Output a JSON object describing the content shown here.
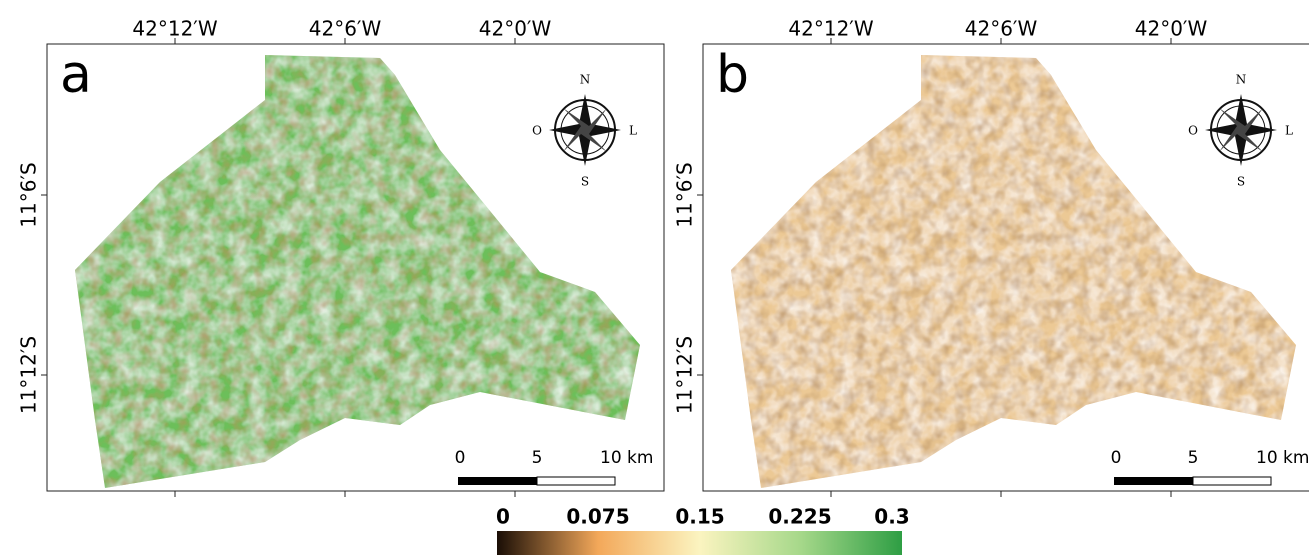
{
  "panels": [
    {
      "label": "a",
      "top_ticks": [
        "42°12′W",
        "42°6′W",
        "42°0′W"
      ],
      "left_ticks": [
        "11°6′S",
        "11°12′S"
      ],
      "compass": {
        "north": "N",
        "south": "S",
        "west": "O",
        "east": "L"
      },
      "scale_bar": [
        "0",
        "5",
        "10 km"
      ]
    },
    {
      "label": "b",
      "top_ticks": [
        "42°12′W",
        "42°6′W",
        "42°0′W"
      ],
      "left_ticks": [
        "11°6′S",
        "11°12′S"
      ],
      "compass": {
        "north": "N",
        "south": "S",
        "west": "O",
        "east": "L"
      },
      "scale_bar": [
        "0",
        "5",
        "10 km"
      ]
    }
  ],
  "colorbar": {
    "ticks": [
      "0",
      "0.075",
      "0.15",
      "0.225",
      "0.3"
    ]
  }
}
